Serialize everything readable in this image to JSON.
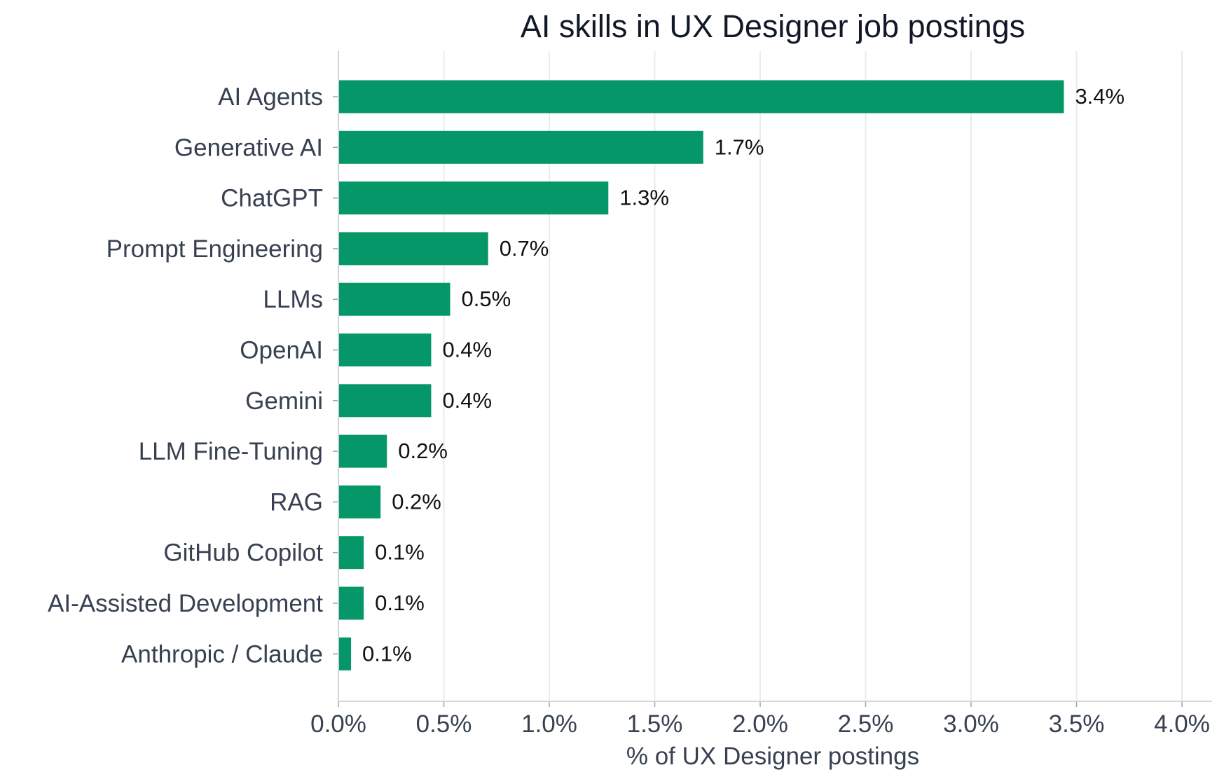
{
  "chart_data": {
    "type": "bar",
    "orientation": "horizontal",
    "title": "AI skills in UX Designer job postings",
    "xlabel": "% of UX Designer postings",
    "ylabel": "",
    "xlim": [
      0,
      4.0
    ],
    "grid": true,
    "categories": [
      "AI Agents",
      "Generative AI",
      "ChatGPT",
      "Prompt Engineering",
      "LLMs",
      "OpenAI",
      "Gemini",
      "LLM Fine-Tuning",
      "RAG",
      "GitHub Copilot",
      "AI-Assisted Development",
      "Anthropic / Claude"
    ],
    "values": [
      3.44,
      1.73,
      1.28,
      0.71,
      0.53,
      0.44,
      0.44,
      0.23,
      0.2,
      0.12,
      0.12,
      0.06
    ],
    "value_labels": [
      "3.4%",
      "1.7%",
      "1.3%",
      "0.7%",
      "0.5%",
      "0.4%",
      "0.4%",
      "0.2%",
      "0.2%",
      "0.1%",
      "0.1%",
      "0.1%"
    ],
    "x_ticks": [
      0.0,
      0.5,
      1.0,
      1.5,
      2.0,
      2.5,
      3.0,
      3.5,
      4.0
    ],
    "x_tick_labels": [
      "0.0%",
      "0.5%",
      "1.0%",
      "1.5%",
      "2.0%",
      "2.5%",
      "3.0%",
      "3.5%",
      "4.0%"
    ],
    "bar_color": "#069769"
  }
}
